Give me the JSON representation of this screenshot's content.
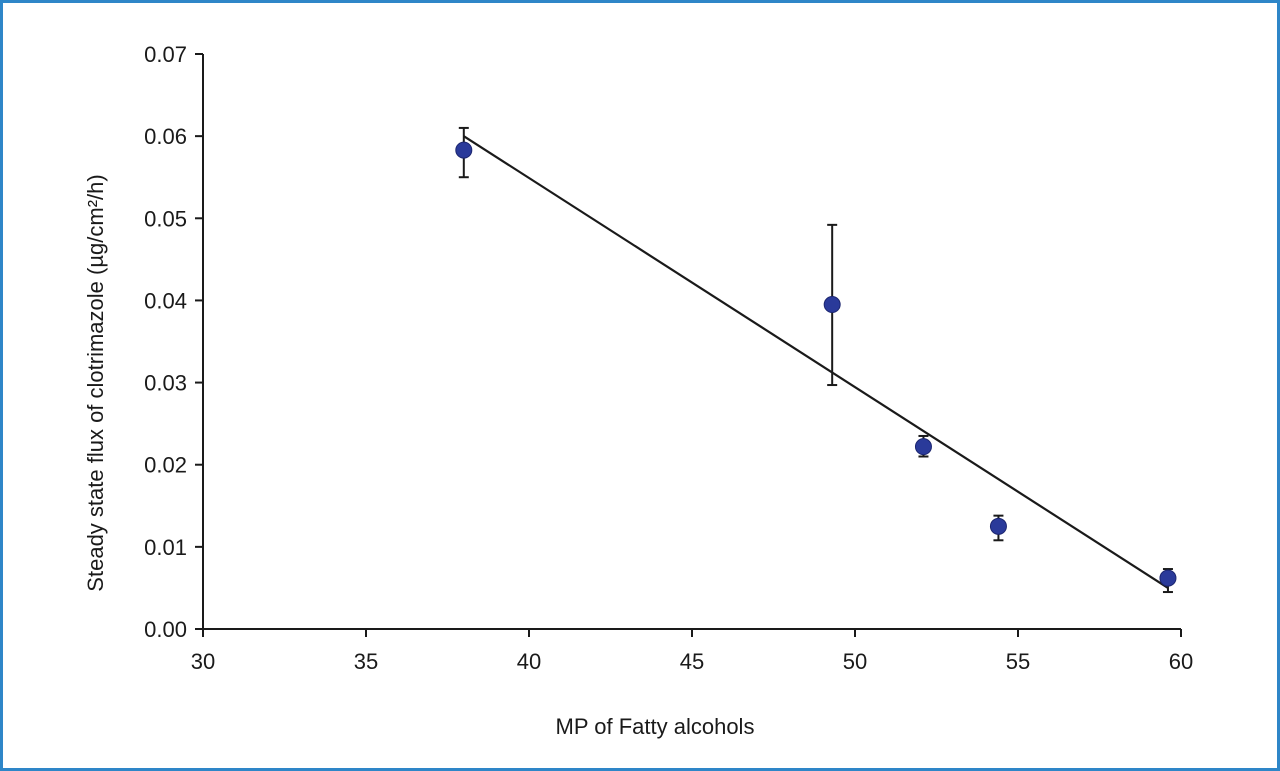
{
  "chart_data": {
    "type": "scatter",
    "title": "",
    "xlabel": "MP of Fatty alcohols",
    "ylabel": "Steady state flux of clotrimazole (µg/cm²/h)",
    "xlim": [
      30,
      60
    ],
    "ylim": [
      0,
      0.07
    ],
    "x_ticks": [
      "30",
      "35",
      "40",
      "45",
      "50",
      "55",
      "60"
    ],
    "y_ticks": [
      "0.00",
      "0.01",
      "0.02",
      "0.03",
      "0.04",
      "0.05",
      "0.06",
      "0.07"
    ],
    "x_tick_values": [
      30,
      35,
      40,
      45,
      50,
      55,
      60
    ],
    "y_tick_values": [
      0,
      0.01,
      0.02,
      0.03,
      0.04,
      0.05,
      0.06,
      0.07
    ],
    "grid": false,
    "legend": "none",
    "series": [
      {
        "x": [
          38.0,
          49.3,
          52.1,
          54.4,
          59.6
        ],
        "y": [
          0.0583,
          0.0395,
          0.0222,
          0.0125,
          0.0062
        ],
        "error_low": [
          0.055,
          0.0297,
          0.021,
          0.0108,
          0.0045
        ],
        "error_high": [
          0.061,
          0.0492,
          0.0235,
          0.0138,
          0.0073
        ],
        "marker_color": "#2a3a9a"
      }
    ],
    "trendline": {
      "x": [
        38.0,
        59.6
      ],
      "y": [
        0.06,
        0.005
      ],
      "color": "#1a1a1a"
    }
  }
}
